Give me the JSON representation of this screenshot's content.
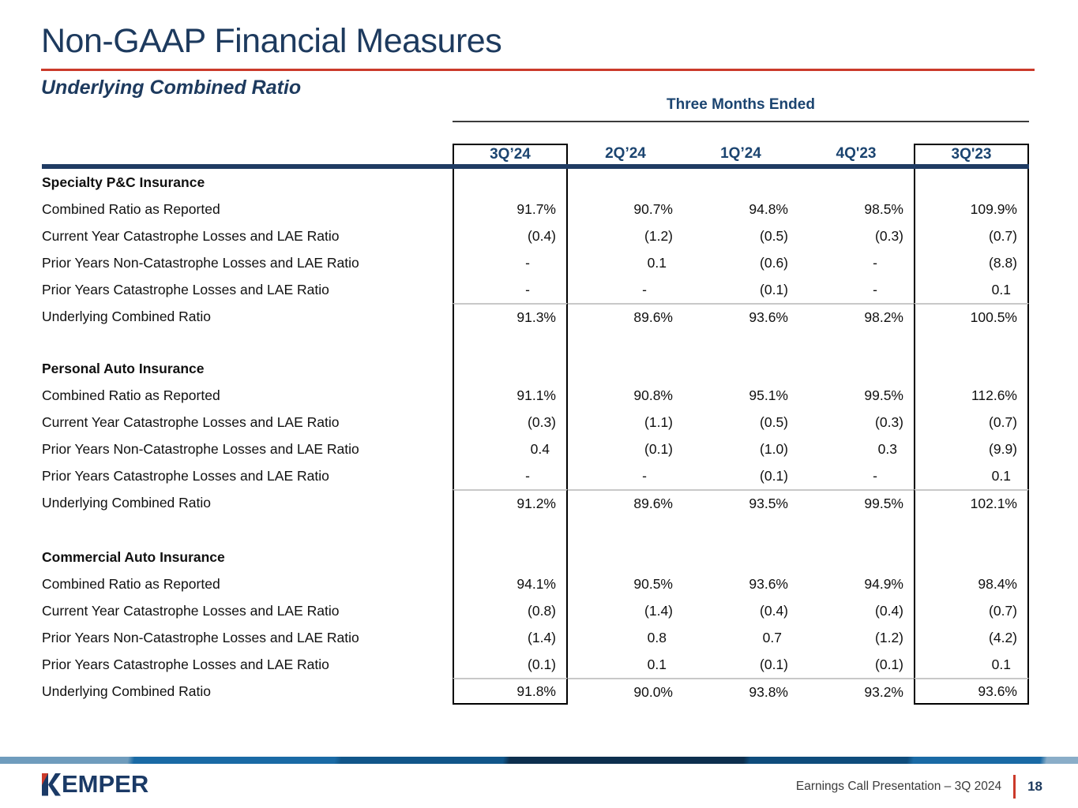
{
  "slide": {
    "title": "Non-GAAP Financial Measures",
    "subtitle": "Underlying Combined Ratio",
    "accent_red": "#cb3a2a",
    "navy": "#1d3a5e"
  },
  "table": {
    "group_header": "Three Months Ended",
    "columns": [
      {
        "label": "3Q’24",
        "emphasized": true
      },
      {
        "label": "2Q’24",
        "emphasized": false
      },
      {
        "label": "1Q’24",
        "emphasized": false
      },
      {
        "label": "4Q'23",
        "emphasized": false
      },
      {
        "label": "3Q'23",
        "emphasized": true
      }
    ],
    "sections": [
      {
        "name": "Specialty P&C Insurance",
        "rows": [
          {
            "label": "Combined Ratio as Reported",
            "values": [
              "91.7%",
              "90.7%",
              "94.8%",
              "98.5%",
              "109.9%"
            ]
          },
          {
            "label": "Current Year Catastrophe Losses and LAE Ratio",
            "values": [
              "(0.4)",
              "(1.2)",
              "(0.5)",
              "(0.3)",
              "(0.7)"
            ]
          },
          {
            "label": "Prior Years Non-Catastrophe Losses and LAE Ratio",
            "values": [
              "-",
              "0.1",
              "(0.6)",
              "-",
              "(8.8)"
            ]
          },
          {
            "label": "Prior Years Catastrophe Losses and LAE Ratio",
            "values": [
              "-",
              "-",
              "(0.1)",
              "-",
              "0.1"
            ]
          },
          {
            "label": "Underlying Combined Ratio",
            "values": [
              "91.3%",
              "89.6%",
              "93.6%",
              "98.2%",
              "100.5%"
            ],
            "subtotal": true
          }
        ]
      },
      {
        "name": "Personal Auto Insurance",
        "rows": [
          {
            "label": "Combined Ratio as Reported",
            "values": [
              "91.1%",
              "90.8%",
              "95.1%",
              "99.5%",
              "112.6%"
            ]
          },
          {
            "label": "Current Year Catastrophe Losses and LAE Ratio",
            "values": [
              "(0.3)",
              "(1.1)",
              "(0.5)",
              "(0.3)",
              "(0.7)"
            ]
          },
          {
            "label": "Prior Years Non-Catastrophe Losses and LAE Ratio",
            "values": [
              "0.4",
              "(0.1)",
              "(1.0)",
              "0.3",
              "(9.9)"
            ]
          },
          {
            "label": "Prior Years Catastrophe Losses and LAE Ratio",
            "values": [
              "-",
              "-",
              "(0.1)",
              "-",
              "0.1"
            ]
          },
          {
            "label": "Underlying Combined Ratio",
            "values": [
              "91.2%",
              "89.6%",
              "93.5%",
              "99.5%",
              "102.1%"
            ],
            "subtotal": true
          }
        ]
      },
      {
        "name": "Commercial Auto Insurance",
        "rows": [
          {
            "label": "Combined Ratio as Reported",
            "values": [
              "94.1%",
              "90.5%",
              "93.6%",
              "94.9%",
              "98.4%"
            ]
          },
          {
            "label": "Current Year Catastrophe Losses and LAE Ratio",
            "values": [
              "(0.8)",
              "(1.4)",
              "(0.4)",
              "(0.4)",
              "(0.7)"
            ]
          },
          {
            "label": "Prior Years Non-Catastrophe Losses and LAE Ratio",
            "values": [
              "(1.4)",
              "0.8",
              "0.7",
              "(1.2)",
              "(4.2)"
            ]
          },
          {
            "label": "Prior Years Catastrophe Losses and LAE Ratio",
            "values": [
              "(0.1)",
              "0.1",
              "(0.1)",
              "(0.1)",
              "0.1"
            ]
          },
          {
            "label": "Underlying Combined Ratio",
            "values": [
              "91.8%",
              "90.0%",
              "93.8%",
              "93.2%",
              "93.6%"
            ],
            "subtotal": true
          }
        ]
      }
    ]
  },
  "footer": {
    "logo_text": "EMPER",
    "logo_name": "KEMPER",
    "caption": "Earnings Call Presentation – 3Q 2024",
    "page_number": "18"
  }
}
